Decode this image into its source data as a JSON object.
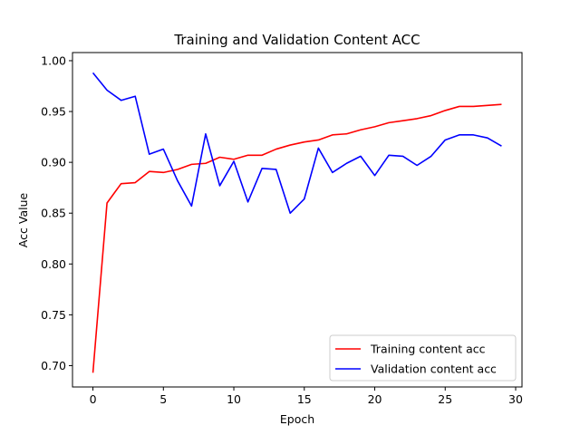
{
  "chart_data": {
    "type": "line",
    "title": "Training and Validation Content ACC",
    "xlabel": "Epoch",
    "ylabel": "Acc Value",
    "xlim": [
      -1.45,
      30.45
    ],
    "ylim": [
      0.679,
      1.008
    ],
    "xticks": [
      0,
      5,
      10,
      15,
      20,
      25,
      30
    ],
    "yticks": [
      0.7,
      0.75,
      0.8,
      0.85,
      0.9,
      0.95,
      1.0
    ],
    "grid": false,
    "legend_position": "lower right",
    "x": [
      0,
      1,
      2,
      3,
      4,
      5,
      6,
      7,
      8,
      9,
      10,
      11,
      12,
      13,
      14,
      15,
      16,
      17,
      18,
      19,
      20,
      21,
      22,
      23,
      24,
      25,
      26,
      27,
      28,
      29
    ],
    "series": [
      {
        "name": "Training content acc",
        "color": "#ff0000",
        "values": [
          0.693,
          0.86,
          0.879,
          0.88,
          0.891,
          0.89,
          0.893,
          0.898,
          0.899,
          0.905,
          0.903,
          0.907,
          0.907,
          0.913,
          0.917,
          0.92,
          0.922,
          0.927,
          0.928,
          0.932,
          0.935,
          0.939,
          0.941,
          0.943,
          0.946,
          0.951,
          0.955,
          0.955,
          0.956,
          0.957
        ]
      },
      {
        "name": "Validation content acc",
        "color": "#0000ff",
        "values": [
          0.988,
          0.971,
          0.961,
          0.965,
          0.908,
          0.913,
          0.882,
          0.857,
          0.928,
          0.877,
          0.901,
          0.861,
          0.894,
          0.893,
          0.85,
          0.864,
          0.914,
          0.89,
          0.899,
          0.906,
          0.887,
          0.907,
          0.906,
          0.897,
          0.906,
          0.922,
          0.927,
          0.927,
          0.924,
          0.916
        ]
      }
    ]
  }
}
